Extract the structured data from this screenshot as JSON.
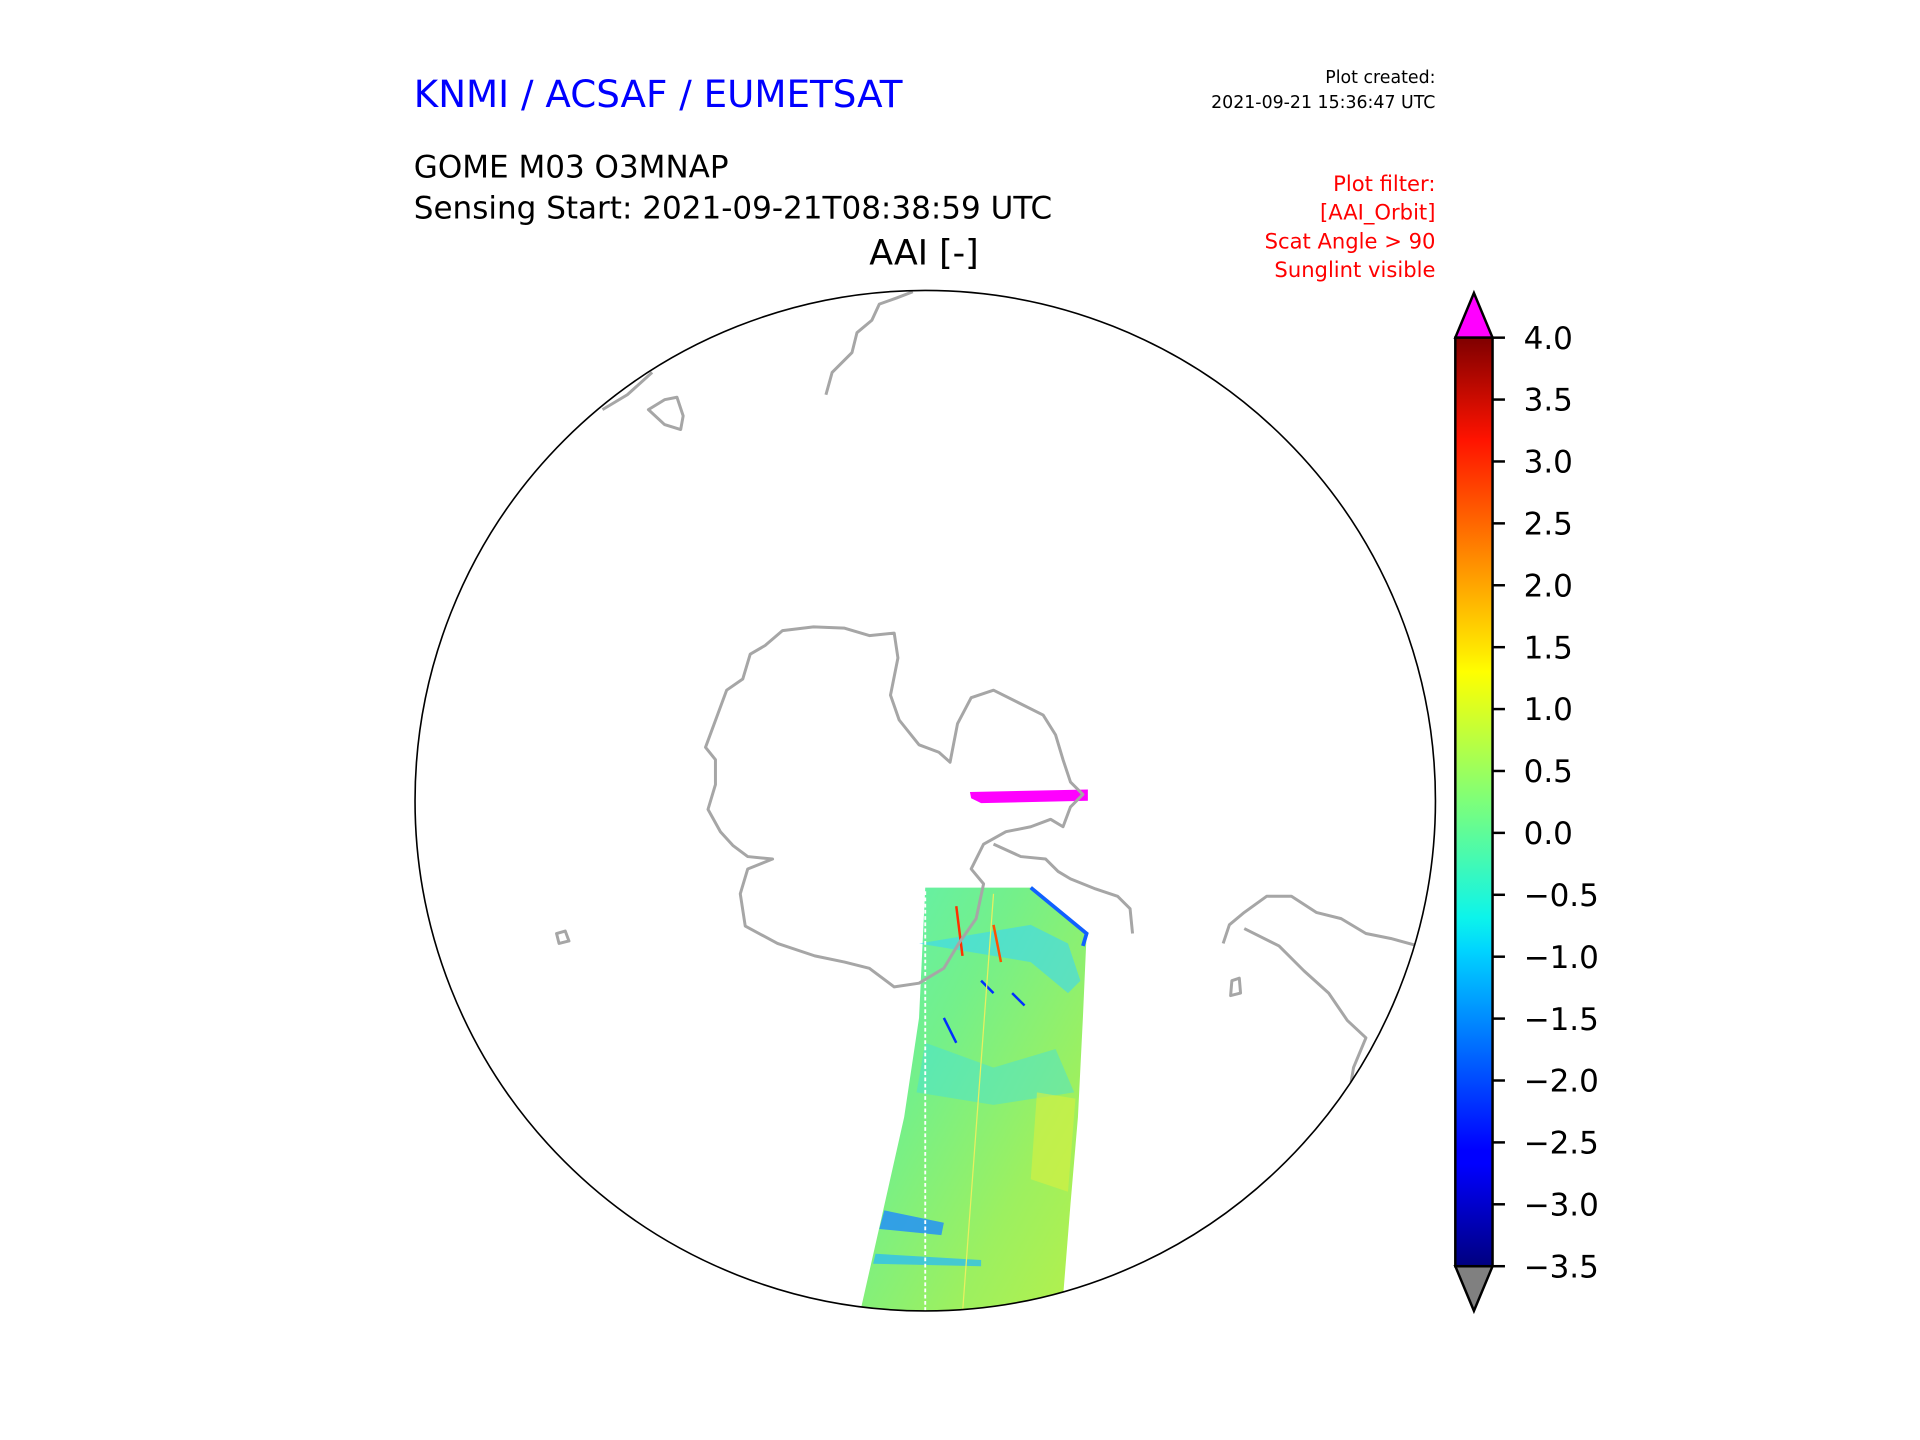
{
  "header": {
    "organisation": "KNMI / ACSAF / EUMETSAT",
    "plot_created_label": "Plot created:",
    "plot_created_time": "2021-09-21 15:36:47 UTC",
    "product": "GOME M03 O3MNAP",
    "sensing_start": "Sensing Start: 2021-09-21T08:38:59 UTC",
    "filter_lines": [
      "Plot filter:",
      "[AAI_Orbit]",
      "Scat Angle > 90",
      "Sunglint visible"
    ]
  },
  "colors": {
    "organisation": "#0000ff",
    "filter": "#ff0000",
    "coastline": "#a6a6a6",
    "over_color": "#ff00ff",
    "under_color": "#808080"
  },
  "chart_data": {
    "type": "heatmap",
    "title": "AAI [-]",
    "projection": "south polar orthographic",
    "variable": "AAI",
    "colorbar": {
      "cmap": "jet",
      "vmin": -3.5,
      "vmax": 4.0,
      "extend": "both",
      "ticks": [
        4.0,
        3.5,
        3.0,
        2.5,
        2.0,
        1.5,
        1.0,
        0.5,
        0.0,
        -0.5,
        -1.0,
        -1.5,
        -2.0,
        -2.5,
        -3.0,
        -3.5
      ],
      "tick_labels": [
        "4.0",
        "3.5",
        "3.0",
        "2.5",
        "2.0",
        "1.5",
        "1.0",
        "0.5",
        "0.0",
        "−0.5",
        "−1.0",
        "−1.5",
        "−2.0",
        "−2.5",
        "−3.0",
        "−3.5"
      ]
    },
    "swath_typical_range": [
      -1.5,
      1.5
    ],
    "over_range_region": "strip over the Weddell Sea / Antarctic Peninsula (AAI > 4.0)"
  }
}
